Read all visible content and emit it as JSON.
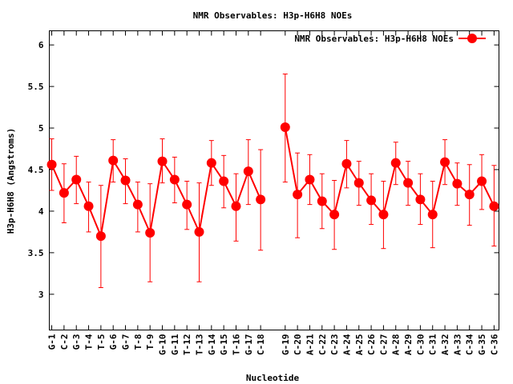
{
  "chart_data": {
    "type": "line",
    "title": "NMR Observables: H3p-H6H8 NOEs",
    "xlabel": "Nucleotide",
    "ylabel": "H3p-H6H8 (Angstroms)",
    "ylim": [
      2.57,
      6.17
    ],
    "yticks": [
      3,
      3.5,
      4,
      4.5,
      5,
      5.5,
      6
    ],
    "ytick_labels": [
      "3",
      "3.5",
      "4",
      "4.5",
      "5",
      "5.5",
      "6"
    ],
    "legend": {
      "position": "top-right",
      "entries": [
        "NMR Observables: H3p-H6H8 NOEs"
      ]
    },
    "grid": false,
    "series": [
      {
        "name": "NMR Observables: H3p-H6H8 NOEs",
        "color": "#ff0000",
        "points": [
          {
            "label": "G-1",
            "x": 1,
            "y": 4.56,
            "ylow": 4.25,
            "yhigh": 4.87
          },
          {
            "label": "C-2",
            "x": 2,
            "y": 4.22,
            "ylow": 3.86,
            "yhigh": 4.57
          },
          {
            "label": "G-3",
            "x": 3,
            "y": 4.38,
            "ylow": 4.09,
            "yhigh": 4.66
          },
          {
            "label": "T-4",
            "x": 4,
            "y": 4.06,
            "ylow": 3.75,
            "yhigh": 4.35
          },
          {
            "label": "T-5",
            "x": 5,
            "y": 3.7,
            "ylow": 3.08,
            "yhigh": 4.31
          },
          {
            "label": "G-6",
            "x": 6,
            "y": 4.61,
            "ylow": 4.35,
            "yhigh": 4.86
          },
          {
            "label": "G-7",
            "x": 7,
            "y": 4.37,
            "ylow": 4.09,
            "yhigh": 4.63
          },
          {
            "label": "T-8",
            "x": 8,
            "y": 4.08,
            "ylow": 3.75,
            "yhigh": 4.35
          },
          {
            "label": "T-9",
            "x": 9,
            "y": 3.74,
            "ylow": 3.15,
            "yhigh": 4.33
          },
          {
            "label": "G-10",
            "x": 10,
            "y": 4.6,
            "ylow": 4.34,
            "yhigh": 4.87
          },
          {
            "label": "G-11",
            "x": 11,
            "y": 4.38,
            "ylow": 4.1,
            "yhigh": 4.65
          },
          {
            "label": "T-12",
            "x": 12,
            "y": 4.08,
            "ylow": 3.78,
            "yhigh": 4.36
          },
          {
            "label": "T-13",
            "x": 13,
            "y": 3.75,
            "ylow": 3.15,
            "yhigh": 4.34
          },
          {
            "label": "G-14",
            "x": 14,
            "y": 4.58,
            "ylow": 4.31,
            "yhigh": 4.85
          },
          {
            "label": "G-15",
            "x": 15,
            "y": 4.36,
            "ylow": 4.04,
            "yhigh": 4.67
          },
          {
            "label": "T-16",
            "x": 16,
            "y": 4.06,
            "ylow": 3.64,
            "yhigh": 4.45
          },
          {
            "label": "G-17",
            "x": 17,
            "y": 4.48,
            "ylow": 4.08,
            "yhigh": 4.86
          },
          {
            "label": "C-18",
            "x": 18,
            "y": 4.14,
            "ylow": 3.53,
            "yhigh": 4.74
          },
          {
            "label": "G-19",
            "x": 20,
            "y": 5.01,
            "ylow": 4.35,
            "yhigh": 5.65
          },
          {
            "label": "C-20",
            "x": 21,
            "y": 4.2,
            "ylow": 3.68,
            "yhigh": 4.7
          },
          {
            "label": "A-21",
            "x": 22,
            "y": 4.38,
            "ylow": 4.08,
            "yhigh": 4.68
          },
          {
            "label": "C-22",
            "x": 23,
            "y": 4.12,
            "ylow": 3.79,
            "yhigh": 4.45
          },
          {
            "label": "C-23",
            "x": 24,
            "y": 3.96,
            "ylow": 3.54,
            "yhigh": 4.37
          },
          {
            "label": "A-24",
            "x": 25,
            "y": 4.57,
            "ylow": 4.28,
            "yhigh": 4.85
          },
          {
            "label": "A-25",
            "x": 26,
            "y": 4.34,
            "ylow": 4.07,
            "yhigh": 4.6
          },
          {
            "label": "C-26",
            "x": 27,
            "y": 4.13,
            "ylow": 3.84,
            "yhigh": 4.45
          },
          {
            "label": "C-27",
            "x": 28,
            "y": 3.96,
            "ylow": 3.55,
            "yhigh": 4.36
          },
          {
            "label": "A-28",
            "x": 29,
            "y": 4.58,
            "ylow": 4.32,
            "yhigh": 4.83
          },
          {
            "label": "A-29",
            "x": 30,
            "y": 4.34,
            "ylow": 4.07,
            "yhigh": 4.6
          },
          {
            "label": "C-30",
            "x": 31,
            "y": 4.14,
            "ylow": 3.84,
            "yhigh": 4.45
          },
          {
            "label": "C-31",
            "x": 32,
            "y": 3.96,
            "ylow": 3.56,
            "yhigh": 4.36
          },
          {
            "label": "A-32",
            "x": 33,
            "y": 4.59,
            "ylow": 4.32,
            "yhigh": 4.86
          },
          {
            "label": "A-33",
            "x": 34,
            "y": 4.33,
            "ylow": 4.07,
            "yhigh": 4.58
          },
          {
            "label": "C-34",
            "x": 35,
            "y": 4.2,
            "ylow": 3.83,
            "yhigh": 4.56
          },
          {
            "label": "G-35",
            "x": 36,
            "y": 4.36,
            "ylow": 4.02,
            "yhigh": 4.68
          },
          {
            "label": "C-36",
            "x": 37,
            "y": 4.06,
            "ylow": 3.58,
            "yhigh": 4.55
          }
        ]
      }
    ],
    "xlim": [
      0.8,
      37.4
    ]
  }
}
